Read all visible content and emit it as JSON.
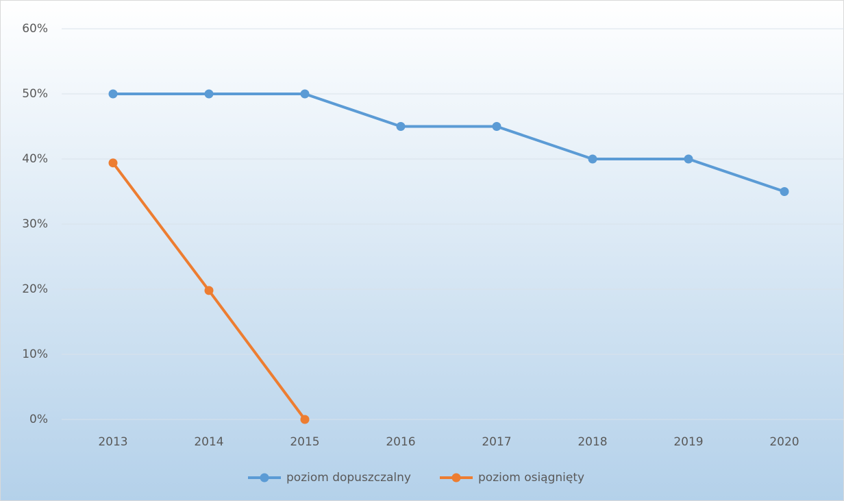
{
  "chart_data": {
    "type": "line",
    "categories": [
      "2013",
      "2014",
      "2015",
      "2016",
      "2017",
      "2018",
      "2019",
      "2020"
    ],
    "series": [
      {
        "name": "poziom dopuszczalny",
        "color": "#5b9bd5",
        "values": [
          50,
          50,
          50,
          45,
          45,
          40,
          40,
          35
        ]
      },
      {
        "name": "poziom osiągnięty",
        "color": "#ed7d31",
        "values": [
          39.4,
          19.8,
          0,
          null,
          null,
          null,
          null,
          null
        ]
      }
    ],
    "ylim": [
      0,
      60
    ],
    "yticks": [
      {
        "value": 0,
        "label": "0%"
      },
      {
        "value": 10,
        "label": "10%"
      },
      {
        "value": 20,
        "label": "20%"
      },
      {
        "value": 30,
        "label": "30%"
      },
      {
        "value": 40,
        "label": "40%"
      },
      {
        "value": 50,
        "label": "50%"
      },
      {
        "value": 60,
        "label": "60%"
      }
    ],
    "grid": true,
    "legend": "bottom"
  }
}
